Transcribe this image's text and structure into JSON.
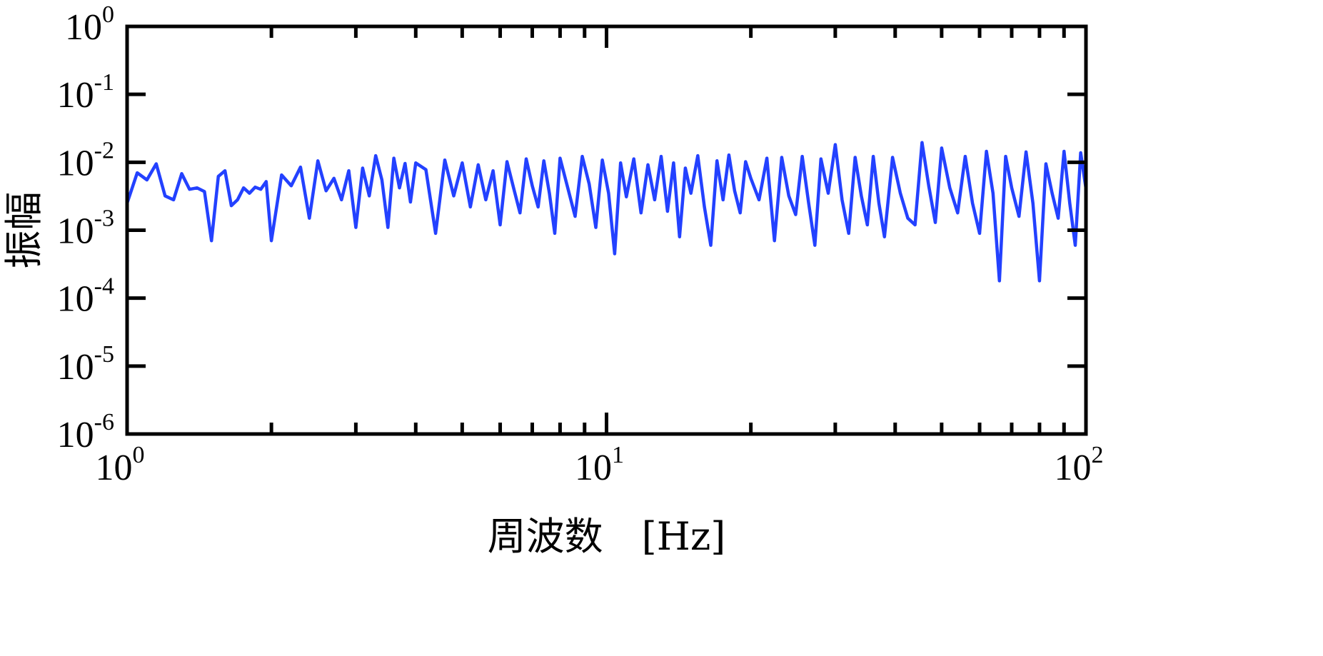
{
  "chart_data": {
    "type": "line",
    "title": "",
    "xlabel": "周波数　[Hz]",
    "ylabel": "振幅",
    "xscale": "log",
    "yscale": "log",
    "xlim": [
      1,
      100
    ],
    "ylim": [
      1e-06,
      1
    ],
    "grid": false,
    "legend": "none",
    "x_ticks": [
      {
        "value": 1,
        "base": "10",
        "exp": "0"
      },
      {
        "value": 10,
        "base": "10",
        "exp": "1"
      },
      {
        "value": 100,
        "base": "10",
        "exp": "2"
      }
    ],
    "y_ticks": [
      {
        "value": 1,
        "base": "10",
        "exp": "0"
      },
      {
        "value": 0.1,
        "base": "10",
        "exp": "-1"
      },
      {
        "value": 0.01,
        "base": "10",
        "exp": "-2"
      },
      {
        "value": 0.001,
        "base": "10",
        "exp": "-3"
      },
      {
        "value": 0.0001,
        "base": "10",
        "exp": "-4"
      },
      {
        "value": 1e-05,
        "base": "10",
        "exp": "-5"
      },
      {
        "value": 1e-06,
        "base": "10",
        "exp": "-6"
      }
    ],
    "series": [
      {
        "color": "#2341ff",
        "x": [
          1.0,
          1.05,
          1.1,
          1.15,
          1.2,
          1.25,
          1.3,
          1.35,
          1.4,
          1.45,
          1.5,
          1.55,
          1.6,
          1.65,
          1.7,
          1.75,
          1.8,
          1.85,
          1.9,
          1.95,
          2.0,
          2.1,
          2.2,
          2.3,
          2.4,
          2.5,
          2.6,
          2.7,
          2.8,
          2.9,
          3.0,
          3.1,
          3.2,
          3.3,
          3.4,
          3.5,
          3.6,
          3.7,
          3.8,
          3.9,
          4.0,
          4.2,
          4.4,
          4.6,
          4.8,
          5.0,
          5.2,
          5.4,
          5.6,
          5.8,
          6.0,
          6.2,
          6.4,
          6.6,
          6.8,
          7.0,
          7.2,
          7.4,
          7.6,
          7.8,
          8.0,
          8.3,
          8.6,
          8.9,
          9.2,
          9.5,
          9.8,
          10.1,
          10.4,
          10.7,
          11.0,
          11.4,
          11.8,
          12.2,
          12.6,
          13.0,
          13.4,
          13.8,
          14.2,
          14.6,
          15.0,
          15.5,
          16.0,
          16.5,
          17.0,
          17.5,
          18.0,
          18.5,
          19.0,
          19.5,
          20.0,
          20.8,
          21.6,
          22.4,
          23.2,
          24.0,
          24.8,
          25.6,
          26.4,
          27.2,
          28.0,
          29.0,
          30.0,
          31.0,
          32.0,
          33.0,
          34.0,
          35.0,
          36.0,
          37.0,
          38.0,
          39.5,
          41.0,
          42.5,
          44.0,
          45.5,
          47.0,
          48.5,
          50.0,
          52.0,
          54.0,
          56.0,
          58.0,
          60.0,
          62.0,
          64.0,
          66.0,
          68.0,
          70.0,
          72.5,
          75.0,
          77.5,
          80.0,
          82.5,
          85.0,
          87.5,
          90.0,
          92.5,
          95.0,
          97.5,
          100.0
        ],
        "y": [
          0.0025,
          0.007,
          0.0055,
          0.0095,
          0.0032,
          0.0028,
          0.0068,
          0.004,
          0.0042,
          0.0037,
          0.0007,
          0.0062,
          0.0075,
          0.0023,
          0.0028,
          0.0042,
          0.0035,
          0.0043,
          0.004,
          0.0052,
          0.0007,
          0.0065,
          0.0045,
          0.0085,
          0.0015,
          0.0105,
          0.0038,
          0.0058,
          0.0028,
          0.0075,
          0.0011,
          0.0082,
          0.0032,
          0.0125,
          0.0055,
          0.0011,
          0.0115,
          0.0042,
          0.0096,
          0.0026,
          0.0098,
          0.0078,
          0.0009,
          0.0108,
          0.0032,
          0.0098,
          0.0022,
          0.0092,
          0.0028,
          0.0075,
          0.0012,
          0.0102,
          0.0042,
          0.0018,
          0.0112,
          0.0045,
          0.0022,
          0.0105,
          0.0035,
          0.0009,
          0.0115,
          0.0042,
          0.0016,
          0.0122,
          0.0048,
          0.0011,
          0.0108,
          0.0035,
          0.00045,
          0.0098,
          0.0031,
          0.0112,
          0.0018,
          0.0092,
          0.0028,
          0.0122,
          0.0019,
          0.0098,
          0.0008,
          0.0082,
          0.0035,
          0.0125,
          0.0022,
          0.0006,
          0.0105,
          0.0028,
          0.0128,
          0.0038,
          0.0018,
          0.0102,
          0.0058,
          0.0028,
          0.0115,
          0.0007,
          0.0118,
          0.0032,
          0.0017,
          0.0122,
          0.0025,
          0.0006,
          0.0112,
          0.0035,
          0.0182,
          0.0028,
          0.0009,
          0.0118,
          0.0032,
          0.0012,
          0.0122,
          0.0025,
          0.0008,
          0.0118,
          0.0035,
          0.0015,
          0.0012,
          0.0195,
          0.0045,
          0.0013,
          0.0162,
          0.0042,
          0.0018,
          0.0122,
          0.0025,
          0.0009,
          0.0145,
          0.0035,
          0.00018,
          0.0122,
          0.0042,
          0.0016,
          0.0142,
          0.0025,
          0.00018,
          0.0095,
          0.0035,
          0.0015,
          0.0145,
          0.0025,
          0.0006,
          0.0138,
          0.0041
        ]
      }
    ]
  }
}
